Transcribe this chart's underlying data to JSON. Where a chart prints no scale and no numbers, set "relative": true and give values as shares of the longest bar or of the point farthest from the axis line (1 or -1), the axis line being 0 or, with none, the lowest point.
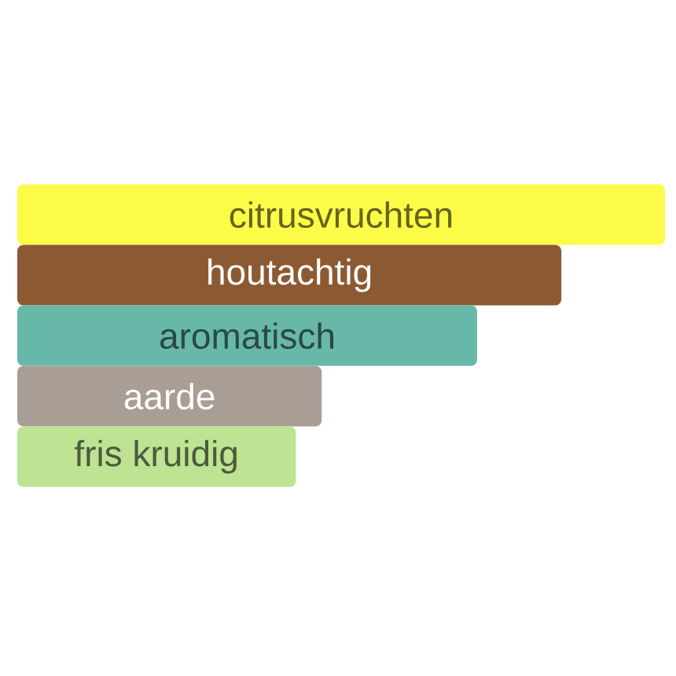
{
  "chart_data": {
    "type": "bar",
    "orientation": "horizontal",
    "relative": true,
    "categories": [
      "citrusvruchten",
      "houtachtig",
      "aromatisch",
      "aarde",
      "fris kruidig"
    ],
    "values": [
      1,
      0.84,
      0.71,
      0.47,
      0.43
    ],
    "colors": [
      "#fcfc48",
      "#8b5a33",
      "#67b8a8",
      "#a89e96",
      "#bee393"
    ]
  }
}
